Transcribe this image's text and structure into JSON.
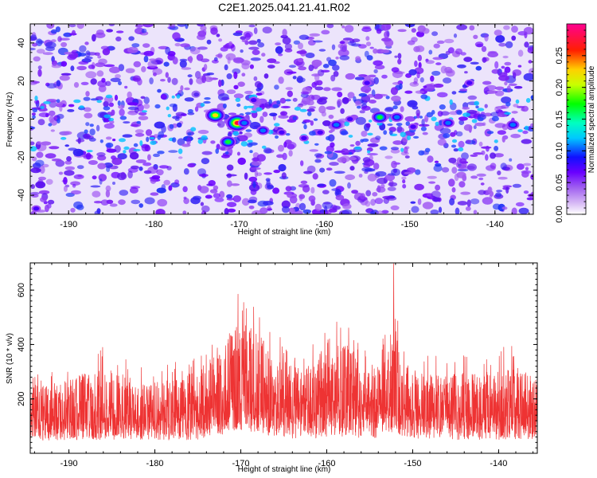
{
  "title": "C2E1.2025.041.21.41.R02",
  "chart_data": [
    {
      "type": "heatmap",
      "xlabel": "Height of straight line (km)",
      "ylabel": "Frequency (Hz)",
      "xlim": [
        -194.5,
        -135.5
      ],
      "ylim": [
        -50,
        50
      ],
      "x_ticks": [
        -190,
        -180,
        -170,
        -160,
        -150,
        -140
      ],
      "y_ticks": [
        -40,
        -20,
        0,
        20,
        40
      ],
      "colorbar": {
        "label": "Normalized spectral amplitude",
        "range": [
          0,
          0.3
        ],
        "ticks": [
          0.0,
          0.05,
          0.1,
          0.15,
          0.2,
          0.25
        ],
        "tick_labels": [
          "0.00",
          "0.05",
          "0.10",
          "0.15",
          "0.20",
          "0.25"
        ],
        "colors": [
          "#ffffff",
          "#b070f0",
          "#7a00ff",
          "#0000ff",
          "#00ffff",
          "#00ff00",
          "#ffff00",
          "#ff0000",
          "#ff0090"
        ]
      },
      "hot_spots": [
        {
          "x": -172.8,
          "y": 2,
          "value": 0.26
        },
        {
          "x": -170.2,
          "y": -2,
          "value": 0.28
        },
        {
          "x": -171.3,
          "y": -12,
          "value": 0.17
        },
        {
          "x": -169.4,
          "y": -2,
          "value": 0.15
        },
        {
          "x": -168.3,
          "y": 10,
          "value": 0.1
        },
        {
          "x": -167.2,
          "y": -6,
          "value": 0.12
        },
        {
          "x": -165.0,
          "y": -7,
          "value": 0.09
        },
        {
          "x": -162.4,
          "y": -10,
          "value": 0.11
        },
        {
          "x": -160.5,
          "y": -7,
          "value": 0.1
        },
        {
          "x": -158.6,
          "y": -3,
          "value": 0.12
        },
        {
          "x": -157.0,
          "y": 0,
          "value": 0.09
        },
        {
          "x": -153.5,
          "y": 1,
          "value": 0.17
        },
        {
          "x": -151.5,
          "y": 1,
          "value": 0.12
        },
        {
          "x": -149.6,
          "y": -4,
          "value": 0.11
        },
        {
          "x": -145.5,
          "y": -2,
          "value": 0.13
        },
        {
          "x": -137.9,
          "y": -3,
          "value": 0.16
        },
        {
          "x": -193.8,
          "y": -47,
          "value": 0.1
        },
        {
          "x": -162.8,
          "y": 31,
          "value": 0.07
        },
        {
          "x": -155.0,
          "y": 19,
          "value": 0.08
        },
        {
          "x": -143.0,
          "y": 19,
          "value": 0.08
        }
      ],
      "grid": false
    },
    {
      "type": "line",
      "xlabel": "Height of straight line (km)",
      "ylabel": "SNR (10 * v/v)",
      "xlim": [
        -194.5,
        -135.5
      ],
      "ylim": [
        0,
        700
      ],
      "x_ticks": [
        -190,
        -180,
        -170,
        -160,
        -150,
        -140
      ],
      "y_ticks": [
        200,
        400,
        600
      ],
      "series_color": "#ee3333",
      "envelope": {
        "x": [
          -194.5,
          -190,
          -186,
          -182,
          -178,
          -175,
          -172.5,
          -171,
          -170,
          -169,
          -168,
          -167,
          -166,
          -164,
          -162,
          -160,
          -158,
          -156,
          -154,
          -152.8,
          -152.2,
          -151.5,
          -150,
          -148,
          -145,
          -142,
          -139,
          -137,
          -135.5
        ],
        "max": [
          300,
          330,
          410,
          320,
          330,
          380,
          460,
          570,
          600,
          590,
          560,
          490,
          450,
          390,
          400,
          450,
          510,
          420,
          380,
          480,
          700,
          420,
          380,
          360,
          370,
          360,
          400,
          380,
          330
        ],
        "min": [
          20,
          20,
          20,
          20,
          20,
          20,
          30,
          40,
          40,
          30,
          40,
          30,
          30,
          20,
          20,
          20,
          20,
          20,
          20,
          30,
          40,
          30,
          20,
          20,
          20,
          20,
          20,
          20,
          20
        ],
        "mean": [
          130,
          130,
          135,
          130,
          130,
          140,
          175,
          200,
          205,
          195,
          185,
          170,
          160,
          150,
          155,
          175,
          180,
          170,
          170,
          185,
          200,
          175,
          160,
          145,
          140,
          135,
          140,
          140,
          130
        ]
      },
      "grid": false
    }
  ]
}
